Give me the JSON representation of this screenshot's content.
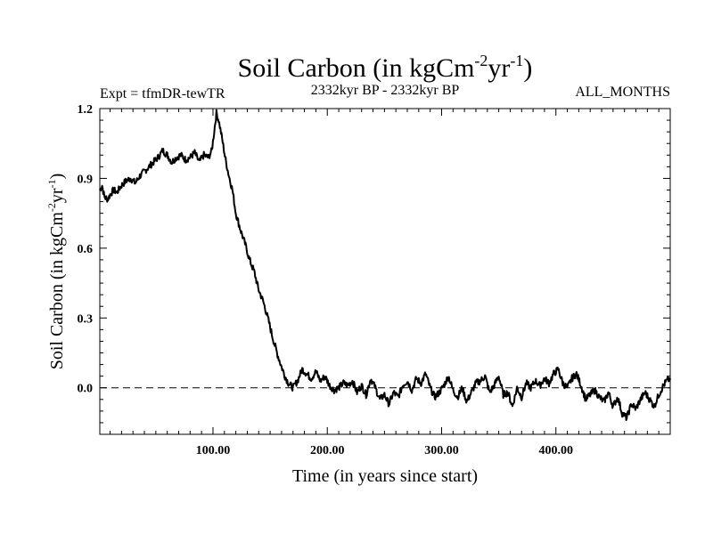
{
  "chart_data": {
    "type": "line",
    "title": "Soil Carbon (in kgCm",
    "title_sup1": "-2",
    "title_mid": "yr",
    "title_sup2": "-1",
    "title_end": ")",
    "expt_label": "Expt = tfmDR-tewTR",
    "period_label": "2332kyr BP - 2332kyr BP",
    "months_label": "ALL_MONTHS",
    "xlabel": "Time (in years since start)",
    "ylabel": "Soil Carbon (in kgCm",
    "ylabel_sup1": "-2",
    "ylabel_mid": "yr",
    "ylabel_sup2": "-1",
    "ylabel_end": ")",
    "xlim": [
      1,
      500
    ],
    "ylim": [
      -0.2,
      1.2
    ],
    "xticks": [
      100,
      200,
      300,
      400
    ],
    "xtick_labels": [
      "100.00",
      "200.00",
      "300.00",
      "400.00"
    ],
    "yticks": [
      0.0,
      0.3,
      0.6,
      0.9,
      1.2
    ],
    "ytick_labels": [
      "0.0",
      "0.3",
      "0.6",
      "0.9",
      "1.2"
    ],
    "zero_line": "dashed",
    "series": [
      {
        "name": "Soil Carbon",
        "x": [
          1,
          3,
          5,
          8,
          10,
          13,
          16,
          20,
          24,
          28,
          32,
          36,
          40,
          44,
          48,
          52,
          56,
          60,
          64,
          68,
          72,
          76,
          80,
          84,
          88,
          92,
          96,
          99,
          101,
          103,
          105,
          108,
          111,
          114,
          117,
          120,
          124,
          128,
          132,
          136,
          140,
          144,
          148,
          152,
          156,
          160,
          163,
          166,
          170,
          174,
          178,
          182,
          186,
          190,
          194,
          198,
          202,
          206,
          210,
          214,
          218,
          222,
          226,
          230,
          234,
          238,
          242,
          246,
          250,
          254,
          258,
          262,
          266,
          270,
          274,
          278,
          282,
          286,
          290,
          294,
          298,
          302,
          306,
          310,
          314,
          318,
          322,
          326,
          330,
          334,
          338,
          342,
          346,
          350,
          354,
          358,
          362,
          366,
          370,
          374,
          378,
          382,
          386,
          390,
          394,
          398,
          402,
          406,
          410,
          414,
          418,
          422,
          426,
          430,
          434,
          438,
          442,
          446,
          450,
          454,
          458,
          462,
          466,
          470,
          474,
          478,
          482,
          486,
          490,
          494,
          497,
          500
        ],
        "y": [
          0.85,
          0.87,
          0.82,
          0.81,
          0.83,
          0.85,
          0.84,
          0.87,
          0.89,
          0.9,
          0.88,
          0.91,
          0.93,
          0.95,
          0.97,
          0.99,
          1.02,
          1.0,
          0.97,
          0.99,
          1.0,
          0.98,
          0.99,
          1.01,
          0.97,
          1.0,
          0.99,
          1.02,
          1.1,
          1.18,
          1.15,
          1.07,
          0.98,
          0.91,
          0.85,
          0.75,
          0.68,
          0.62,
          0.55,
          0.5,
          0.42,
          0.37,
          0.3,
          0.22,
          0.15,
          0.09,
          0.05,
          0.02,
          0.0,
          0.03,
          0.08,
          0.06,
          0.04,
          0.07,
          0.03,
          0.05,
          0.01,
          -0.01,
          0.0,
          0.02,
          0.01,
          0.03,
          -0.02,
          0.01,
          -0.03,
          0.04,
          0.0,
          -0.05,
          -0.03,
          -0.07,
          -0.02,
          -0.04,
          0.01,
          0.03,
          -0.01,
          0.04,
          0.02,
          0.06,
          0.0,
          -0.04,
          -0.02,
          0.01,
          0.05,
          -0.01,
          -0.04,
          0.0,
          -0.06,
          -0.02,
          0.02,
          0.03,
          0.05,
          -0.02,
          0.01,
          0.05,
          -0.03,
          -0.02,
          -0.08,
          0.0,
          -0.04,
          0.02,
          0.0,
          0.03,
          0.01,
          0.04,
          0.02,
          0.06,
          0.08,
          0.02,
          0.0,
          0.04,
          0.06,
          0.01,
          -0.05,
          -0.03,
          -0.01,
          -0.04,
          -0.06,
          -0.02,
          -0.08,
          -0.04,
          -0.11,
          -0.13,
          -0.07,
          -0.09,
          -0.05,
          -0.02,
          -0.05,
          -0.08,
          -0.03,
          0.01,
          0.03,
          0.04
        ]
      }
    ]
  }
}
